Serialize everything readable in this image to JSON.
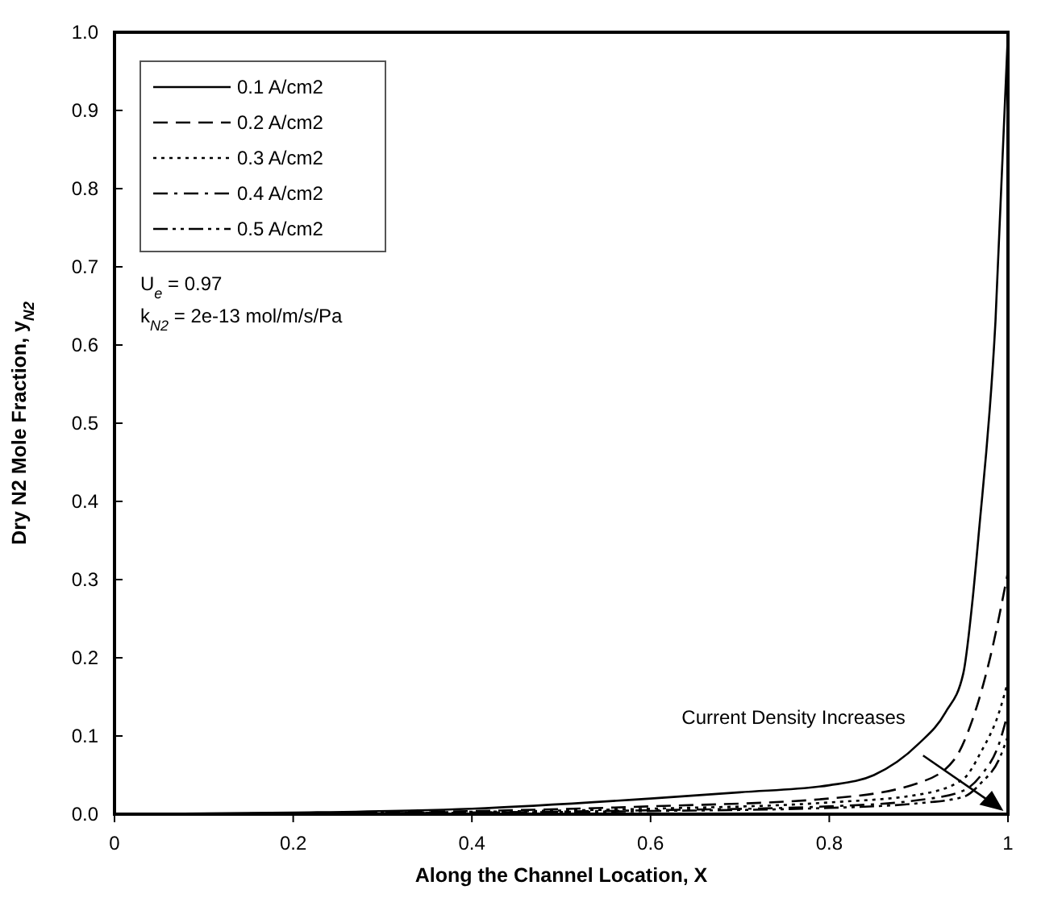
{
  "chart_data": {
    "type": "line",
    "xlabel": "Along the Channel Location, X",
    "ylabel": "Dry N2 Mole Fraction, y$_{N2}$",
    "xlim": [
      0,
      1
    ],
    "xticks": [
      0,
      0.2,
      0.4,
      0.6,
      0.8,
      1
    ],
    "ylim": [
      0,
      1
    ],
    "yticks": [
      {
        "value": 0,
        "label": "0.0"
      },
      0.1,
      0.2,
      0.3,
      0.4,
      0.5,
      0.6,
      0.7,
      0.8,
      0.9,
      {
        "value": 1,
        "label": "1.0"
      }
    ],
    "grid": false,
    "legend": "top left",
    "marker": "none",
    "annotations": [
      "U$_{e}$ = 0.97",
      "k$_{N2}$ = 2e-13 mol/m/s/Pa",
      "Current Density Increases"
    ],
    "series": [
      {
        "name": "0.1 A/cm2",
        "color": "#000000",
        "line_style": "solid",
        "x": [
          0,
          0.2,
          0.4,
          0.6,
          0.7,
          0.8,
          0.85,
          0.9,
          0.93,
          0.95,
          0.96,
          0.967,
          0.986,
          1.0
        ],
        "values": [
          0,
          0.002,
          0.007,
          0.02,
          0.028,
          0.037,
          0.05,
          0.09,
          0.13,
          0.18,
          0.27,
          0.355,
          0.63,
          1.0
        ]
      },
      {
        "name": "0.2 A/cm2",
        "color": "#000000",
        "line_style": "dashed",
        "x": [
          0,
          0.4,
          0.6,
          0.8,
          0.9,
          0.94,
          0.96,
          0.98,
          1.0
        ],
        "values": [
          0,
          0.004,
          0.01,
          0.02,
          0.04,
          0.07,
          0.12,
          0.2,
          0.31
        ]
      },
      {
        "name": "0.3 A/cm2",
        "color": "#000000",
        "line_style": "dotted",
        "x": [
          0,
          0.4,
          0.6,
          0.8,
          0.9,
          0.95,
          0.97,
          0.99,
          1.0
        ],
        "values": [
          0,
          0.003,
          0.007,
          0.015,
          0.025,
          0.045,
          0.08,
          0.13,
          0.17
        ]
      },
      {
        "name": "0.4 A/cm2",
        "color": "#000000",
        "line_style": "dashdot",
        "x": [
          0,
          0.4,
          0.6,
          0.8,
          0.9,
          0.95,
          0.97,
          0.99,
          1.0
        ],
        "values": [
          0,
          0.002,
          0.005,
          0.01,
          0.018,
          0.03,
          0.05,
          0.09,
          0.13
        ]
      },
      {
        "name": "0.5 A/cm2",
        "color": "#000000",
        "line_style": "dashdotdot",
        "x": [
          0,
          0.4,
          0.6,
          0.8,
          0.9,
          0.95,
          0.97,
          0.99,
          1.0
        ],
        "values": [
          0,
          0.002,
          0.004,
          0.008,
          0.014,
          0.022,
          0.04,
          0.07,
          0.1
        ]
      }
    ]
  }
}
